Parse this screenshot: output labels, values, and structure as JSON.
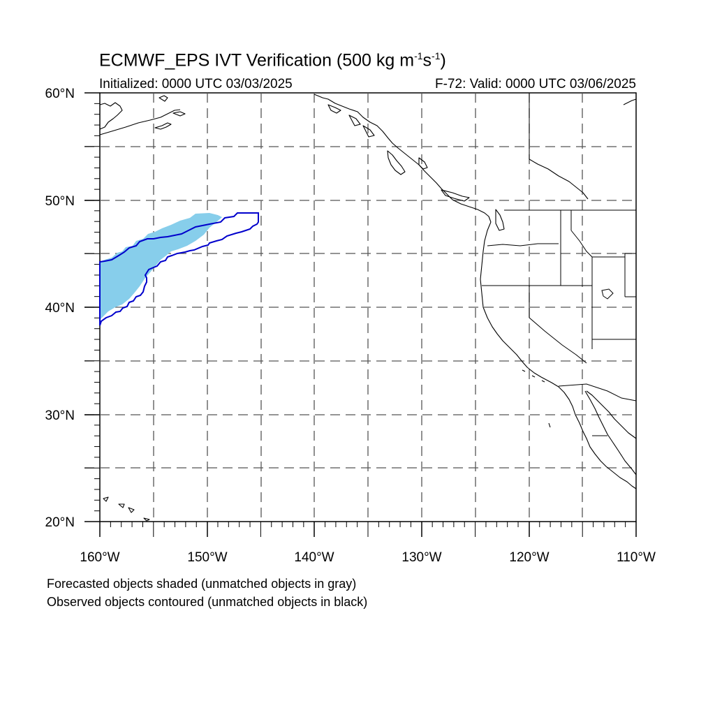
{
  "title": {
    "main": "ECMWF_EPS IVT Verification (500 kg m",
    "sup1": "-1",
    "mid": "s",
    "sup2": "-1",
    "end": ")"
  },
  "initialized": "Initialized: 0000 UTC 03/03/2025",
  "valid": "F-72: Valid: 0000 UTC 03/06/2025",
  "footnotes": {
    "forecast": "Forecasted objects shaded (unmatched objects in gray)",
    "observed": "Observed objects contoured (unmatched objects in black)"
  },
  "axes": {
    "lat_labels": [
      "60°N",
      "50°N",
      "40°N",
      "30°N",
      "20°N"
    ],
    "lon_labels": [
      "160°W",
      "150°W",
      "140°W",
      "130°W",
      "120°W",
      "110°W"
    ]
  },
  "map_extent": {
    "lon_min": -160,
    "lon_max": -110,
    "lat_min": 20,
    "lat_max": 60
  },
  "colors": {
    "forecast_fill": "#87ceeb",
    "observed_contour": "#0000cc",
    "coastline": "#000000",
    "grid": "#555555"
  }
}
